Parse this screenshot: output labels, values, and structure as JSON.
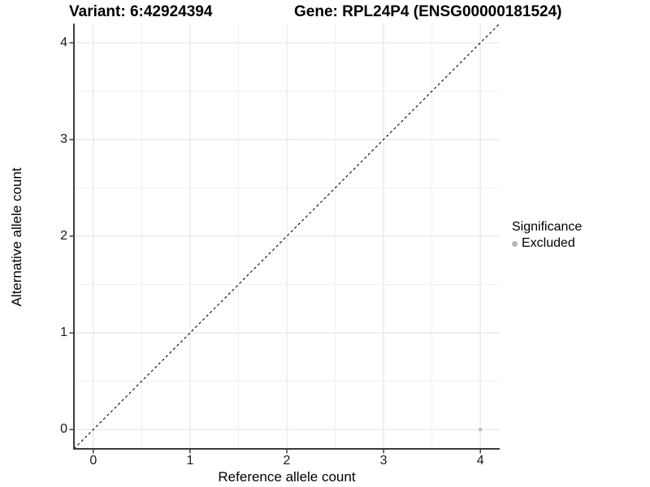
{
  "chart_data": {
    "type": "scatter",
    "title_left": "Variant: 6:42924394",
    "title_right": "Gene: RPL24P4 (ENSG00000181524)",
    "xlabel": "Reference allele count",
    "ylabel": "Alternative allele count",
    "xlim": [
      -0.2,
      4.2
    ],
    "ylim": [
      -0.2,
      4.2
    ],
    "xticks": [
      0,
      1,
      2,
      3,
      4
    ],
    "yticks": [
      0,
      1,
      2,
      3,
      4
    ],
    "xminor": [
      0.5,
      1.5,
      2.5,
      3.5
    ],
    "yminor": [
      0.5,
      1.5,
      2.5,
      3.5
    ],
    "grid": "major+minor",
    "identity_line": {
      "style": "dashed",
      "color": "#000000",
      "from": [
        -0.2,
        -0.2
      ],
      "to": [
        4.2,
        4.2
      ]
    },
    "series": [
      {
        "name": "Excluded",
        "color": "#bebebe",
        "points": [
          {
            "x": 4,
            "y": 0
          }
        ]
      }
    ],
    "legend_position": "right"
  },
  "legend": {
    "title": "Significance",
    "items": [
      {
        "label": "Excluded",
        "color": "#b4b4b4"
      }
    ]
  },
  "style": {
    "grid_major_color": "#e6e6e6",
    "grid_minor_color": "#f0f0f0",
    "axis_line_color": "#3c3c3c",
    "tick_color": "#222222",
    "point_color": "#bebebe"
  }
}
